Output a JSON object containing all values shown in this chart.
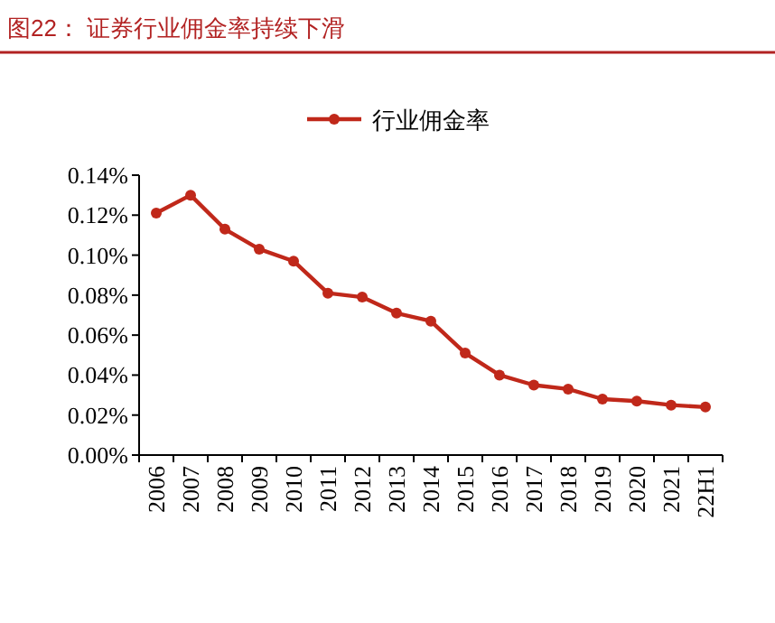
{
  "chart_data": {
    "type": "line",
    "title": "图22：  证券行业佣金率持续下滑",
    "categories": [
      "2006",
      "2007",
      "2008",
      "2009",
      "2010",
      "2011",
      "2012",
      "2013",
      "2014",
      "2015",
      "2016",
      "2017",
      "2018",
      "2019",
      "2020",
      "2021",
      "22H1"
    ],
    "series": [
      {
        "name": "行业佣金率",
        "color": "#c0281a",
        "values": [
          0.121,
          0.13,
          0.113,
          0.103,
          0.097,
          0.081,
          0.079,
          0.071,
          0.067,
          0.051,
          0.04,
          0.035,
          0.033,
          0.028,
          0.027,
          0.025,
          0.024
        ]
      }
    ],
    "ylim": [
      0,
      0.14
    ],
    "yticks": [
      {
        "value": 0,
        "label": "0.00%"
      },
      {
        "value": 0.02,
        "label": "0.02%"
      },
      {
        "value": 0.04,
        "label": "0.04%"
      },
      {
        "value": 0.06,
        "label": "0.06%"
      },
      {
        "value": 0.08,
        "label": "0.08%"
      },
      {
        "value": 0.1,
        "label": "0.10%"
      },
      {
        "value": 0.12,
        "label": "0.12%"
      },
      {
        "value": 0.14,
        "label": "0.14%"
      }
    ],
    "marker": "circle",
    "legend": "top",
    "grid": false
  }
}
